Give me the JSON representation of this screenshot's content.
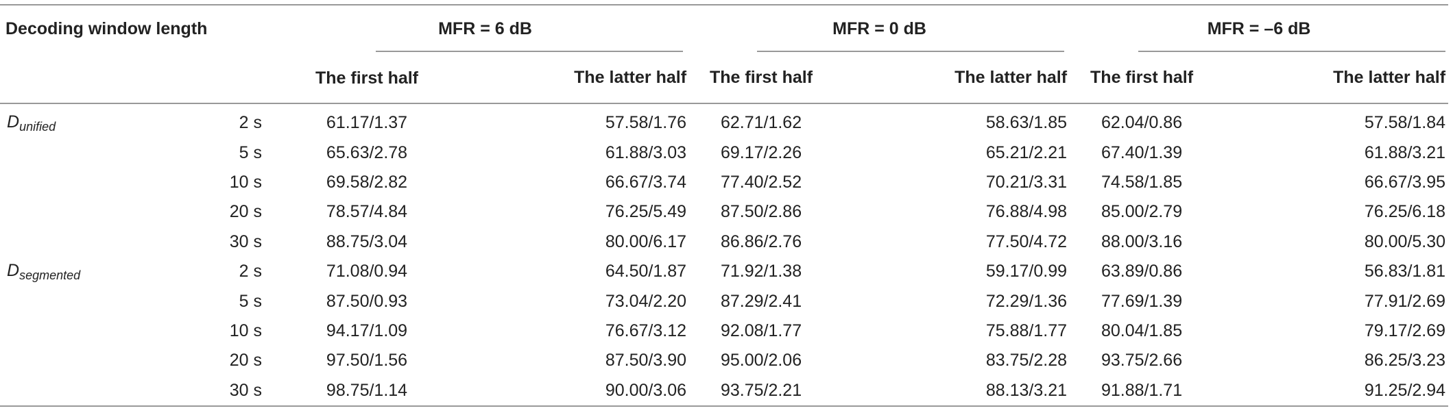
{
  "header": {
    "row_label": "Decoding window length",
    "groups": [
      "MFR = 6 dB",
      "MFR = 0 dB",
      "MFR = –6 dB"
    ],
    "subcols": [
      "The first half",
      "The latter half",
      "The first half",
      "The latter half",
      "The first half",
      "The latter half"
    ]
  },
  "sections": [
    {
      "label_main": "D",
      "label_sub": "unified",
      "rows": [
        {
          "window": "2 s",
          "values": [
            "61.17/1.37",
            "57.58/1.76",
            "62.71/1.62",
            "58.63/1.85",
            "62.04/0.86",
            "57.58/1.84"
          ]
        },
        {
          "window": "5 s",
          "values": [
            "65.63/2.78",
            "61.88/3.03",
            "69.17/2.26",
            "65.21/2.21",
            "67.40/1.39",
            "61.88/3.21"
          ]
        },
        {
          "window": "10 s",
          "values": [
            "69.58/2.82",
            "66.67/3.74",
            "77.40/2.52",
            "70.21/3.31",
            "74.58/1.85",
            "66.67/3.95"
          ]
        },
        {
          "window": "20 s",
          "values": [
            "78.57/4.84",
            "76.25/5.49",
            "87.50/2.86",
            "76.88/4.98",
            "85.00/2.79",
            "76.25/6.18"
          ]
        },
        {
          "window": "30 s",
          "values": [
            "88.75/3.04",
            "80.00/6.17",
            "86.86/2.76",
            "77.50/4.72",
            "88.00/3.16",
            "80.00/5.30"
          ]
        }
      ]
    },
    {
      "label_main": "D",
      "label_sub": "segmented",
      "rows": [
        {
          "window": "2 s",
          "values": [
            "71.08/0.94",
            "64.50/1.87",
            "71.92/1.38",
            "59.17/0.99",
            "63.89/0.86",
            "56.83/1.81"
          ]
        },
        {
          "window": "5 s",
          "values": [
            "87.50/0.93",
            "73.04/2.20",
            "87.29/2.41",
            "72.29/1.36",
            "77.69/1.39",
            "77.91/2.69"
          ]
        },
        {
          "window": "10 s",
          "values": [
            "94.17/1.09",
            "76.67/3.12",
            "92.08/1.77",
            "75.88/1.77",
            "80.04/1.85",
            "79.17/2.69"
          ]
        },
        {
          "window": "20 s",
          "values": [
            "97.50/1.56",
            "87.50/3.90",
            "95.00/2.06",
            "83.75/2.28",
            "93.75/2.66",
            "86.25/3.23"
          ]
        },
        {
          "window": "30 s",
          "values": [
            "98.75/1.14",
            "90.00/3.06",
            "93.75/2.21",
            "88.13/3.21",
            "91.88/1.71",
            "91.25/2.94"
          ]
        }
      ]
    }
  ]
}
